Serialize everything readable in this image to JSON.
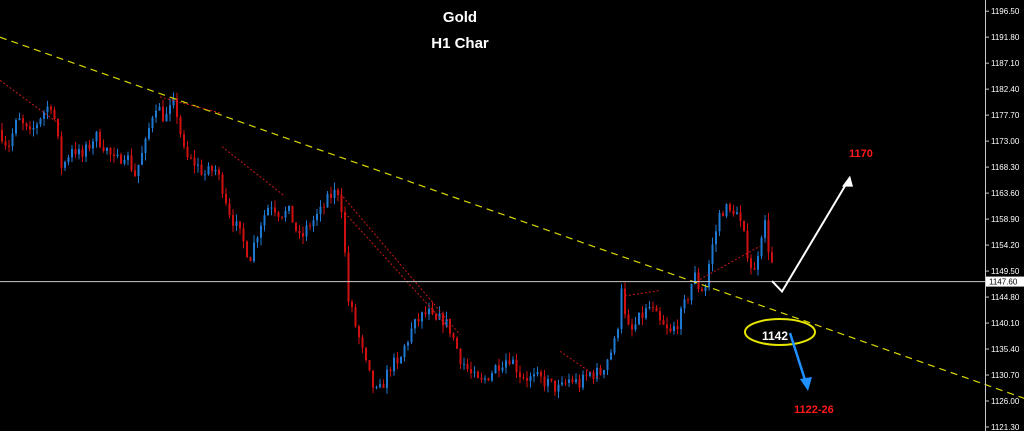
{
  "chart_data": {
    "type": "candlestick",
    "title": "Gold",
    "subtitle": "H1 Char",
    "xlabel": "",
    "ylabel": "",
    "ylim": [
      1121.3,
      1197.8
    ],
    "y_ticks": [
      "1196.50",
      "1191.80",
      "1187.10",
      "1182.40",
      "1177.70",
      "1173.00",
      "1168.30",
      "1163.60",
      "1158.90",
      "1154.20",
      "1149.50",
      "1144.80",
      "1140.10",
      "1135.40",
      "1130.70",
      "1126.00",
      "1121.30"
    ],
    "current_price_label": "1147.60",
    "current_price": 1147.6,
    "grid": false,
    "colors": {
      "up": "#1f78d1",
      "down": "#d01010",
      "trendline": "#d8d800",
      "price_line": "#c8c8c8",
      "target_up": "#ffffff",
      "target_down": "#1e90ff"
    },
    "path_points": [
      [
        0,
        1175
      ],
      [
        8,
        1172
      ],
      [
        18,
        1177
      ],
      [
        30,
        1174
      ],
      [
        42,
        1178
      ],
      [
        52,
        1180
      ],
      [
        62,
        1168
      ],
      [
        72,
        1172
      ],
      [
        82,
        1170
      ],
      [
        95,
        1174
      ],
      [
        105,
        1172
      ],
      [
        115,
        1169
      ],
      [
        125,
        1171
      ],
      [
        135,
        1167
      ],
      [
        145,
        1172
      ],
      [
        155,
        1180
      ],
      [
        165,
        1177
      ],
      [
        175,
        1180
      ],
      [
        185,
        1170
      ],
      [
        195,
        1169
      ],
      [
        205,
        1167
      ],
      [
        215,
        1168
      ],
      [
        222,
        1165
      ],
      [
        230,
        1160
      ],
      [
        240,
        1156
      ],
      [
        250,
        1152
      ],
      [
        260,
        1158
      ],
      [
        270,
        1162
      ],
      [
        280,
        1160
      ],
      [
        290,
        1160
      ],
      [
        300,
        1155
      ],
      [
        310,
        1158
      ],
      [
        320,
        1160
      ],
      [
        330,
        1163
      ],
      [
        338,
        1164
      ],
      [
        343,
        1160
      ],
      [
        347,
        1145
      ],
      [
        352,
        1142
      ],
      [
        358,
        1138
      ],
      [
        365,
        1133
      ],
      [
        372,
        1129
      ],
      [
        378,
        1127
      ],
      [
        385,
        1130
      ],
      [
        392,
        1133
      ],
      [
        398,
        1132
      ],
      [
        405,
        1136
      ],
      [
        412,
        1139
      ],
      [
        420,
        1141
      ],
      [
        428,
        1142
      ],
      [
        435,
        1140
      ],
      [
        442,
        1141
      ],
      [
        450,
        1139
      ],
      [
        460,
        1134
      ],
      [
        470,
        1131
      ],
      [
        480,
        1129
      ],
      [
        490,
        1131
      ],
      [
        500,
        1133
      ],
      [
        510,
        1134
      ],
      [
        520,
        1131
      ],
      [
        530,
        1130
      ],
      [
        540,
        1130
      ],
      [
        550,
        1129
      ],
      [
        560,
        1128
      ],
      [
        570,
        1130
      ],
      [
        580,
        1129
      ],
      [
        590,
        1131
      ],
      [
        600,
        1131
      ],
      [
        608,
        1134
      ],
      [
        614,
        1136
      ],
      [
        618,
        1140
      ],
      [
        621,
        1148
      ],
      [
        625,
        1141
      ],
      [
        630,
        1138
      ],
      [
        640,
        1141
      ],
      [
        650,
        1143
      ],
      [
        660,
        1140
      ],
      [
        670,
        1138
      ],
      [
        680,
        1141
      ],
      [
        688,
        1145
      ],
      [
        694,
        1149
      ],
      [
        700,
        1146
      ],
      [
        706,
        1147
      ],
      [
        710,
        1152
      ],
      [
        715,
        1156
      ],
      [
        720,
        1160
      ],
      [
        725,
        1161
      ],
      [
        730,
        1160
      ],
      [
        735,
        1161
      ],
      [
        740,
        1158
      ],
      [
        745,
        1155
      ],
      [
        750,
        1151
      ],
      [
        755,
        1149
      ],
      [
        760,
        1156
      ],
      [
        765,
        1158
      ],
      [
        770,
        1152
      ],
      [
        775,
        1149
      ]
    ],
    "trendline": [
      [
        0,
        1191.8
      ],
      [
        1024,
        1126.5
      ]
    ],
    "projection_up": [
      [
        782,
        1145.8
      ],
      [
        850,
        1166.4
      ]
    ],
    "projection_down": [
      [
        790,
        1138.3
      ],
      [
        806,
        1127.8
      ]
    ],
    "annotations": {
      "target_high": "1170",
      "support": "1142",
      "target_low": "1122-26"
    }
  }
}
